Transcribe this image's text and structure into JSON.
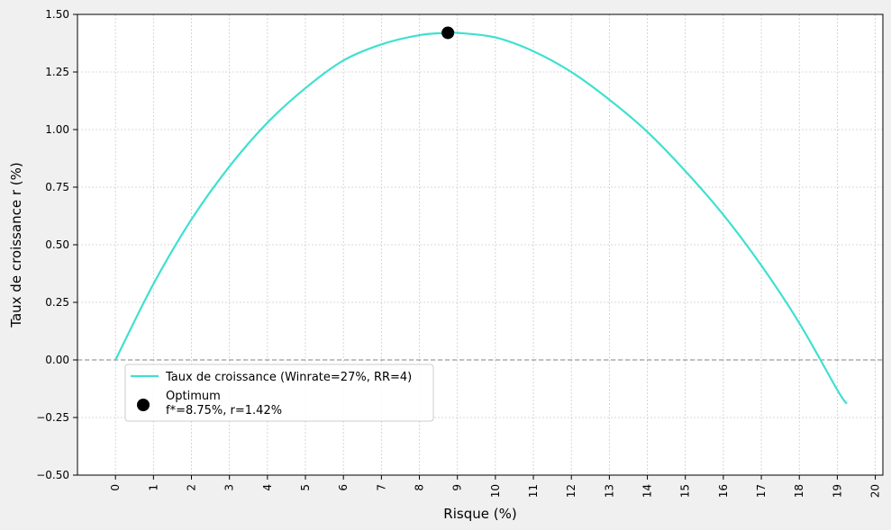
{
  "chart_data": {
    "type": "line",
    "xlabel": "Risque (%)",
    "ylabel": "Taux de croissance r (%)",
    "xlim": [
      -1,
      20.2
    ],
    "ylim": [
      -0.5,
      1.5
    ],
    "xticks": [
      "0",
      "1",
      "2",
      "3",
      "4",
      "5",
      "6",
      "7",
      "8",
      "9",
      "10",
      "11",
      "12",
      "13",
      "14",
      "15",
      "16",
      "17",
      "18",
      "19",
      "20"
    ],
    "yticks": [
      "−0.50",
      "−0.25",
      "0.00",
      "0.25",
      "0.50",
      "0.75",
      "1.00",
      "1.25",
      "1.50"
    ],
    "grid": true,
    "reference_line": {
      "y": 0,
      "style": "dashed"
    },
    "series": [
      {
        "name": "Taux de croissance (Winrate=27%, RR=4)",
        "color": "#40e0d0",
        "x": [
          0,
          1,
          2,
          3,
          4,
          5,
          6,
          7,
          8,
          8.75,
          9,
          10,
          11,
          12,
          13,
          14,
          15,
          16,
          17,
          18,
          19,
          19.25
        ],
        "y": [
          0,
          0.33,
          0.61,
          0.84,
          1.03,
          1.18,
          1.3,
          1.37,
          1.41,
          1.42,
          1.42,
          1.4,
          1.34,
          1.25,
          1.13,
          0.99,
          0.82,
          0.63,
          0.41,
          0.16,
          -0.13,
          -0.19
        ]
      }
    ],
    "points": [
      {
        "name": "Optimum",
        "label": "f*=8.75%, r=1.42%",
        "x": 8.75,
        "y": 1.42,
        "color": "#000000"
      }
    ],
    "legend": {
      "position": "lower-left",
      "line_label": "Taux de croissance (Winrate=27%, RR=4)",
      "point_label_1": "Optimum",
      "point_label_2": "f*=8.75%, r=1.42%"
    }
  }
}
